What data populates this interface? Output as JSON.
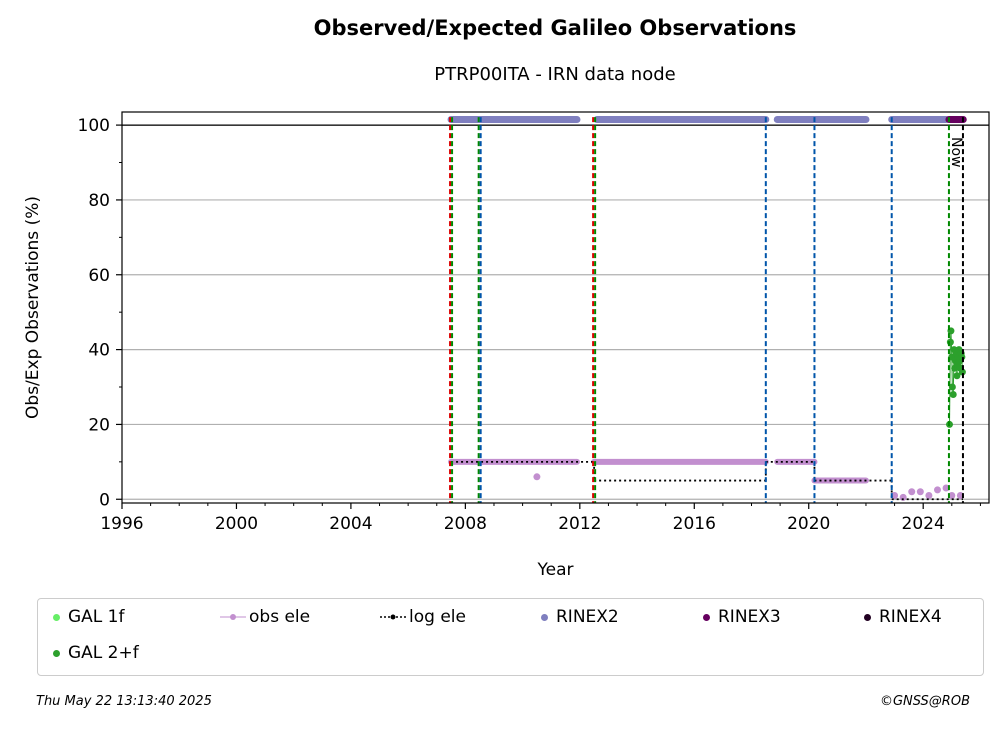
{
  "header": {
    "title": "Observed/Expected Galileo Observations",
    "subtitle": "PTRP00ITA - IRN data node"
  },
  "footer": {
    "timestamp": "Thu May 22 13:13:40 2025",
    "copyright": "©GNSS@ROB"
  },
  "now_label": "Now",
  "legend": {
    "gal1f": "GAL 1f",
    "gal2f": "GAL 2+f",
    "obs_ele": "obs ele",
    "log_ele": "log ele",
    "rinex2": "RINEX2",
    "rinex3": "RINEX3",
    "rinex4": "RINEX4"
  },
  "colors": {
    "gal1f": "#66ee66",
    "gal2f": "#2ca02c",
    "obs_ele": "#c28fcf",
    "log_ele": "#000000",
    "rinex2": "#7f7fbf",
    "rinex3": "#66005f",
    "rinex4": "#220022",
    "vline_red": "#dd0000",
    "vline_green": "#008800",
    "vline_blue": "#0055aa",
    "vline_now": "#000000"
  },
  "chart_data": {
    "type": "scatter",
    "title": "Observed/Expected Galileo Observations",
    "subtitle": "PTRP00ITA - IRN data node",
    "xlabel": "Year",
    "ylabel": "Obs/Exp Observations (%)",
    "xlim": [
      1996,
      2026.3
    ],
    "ylim": [
      -1,
      103.5
    ],
    "xticks": [
      1996,
      2000,
      2004,
      2008,
      2012,
      2016,
      2020,
      2024
    ],
    "yticks": [
      0,
      20,
      40,
      60,
      80,
      100
    ],
    "grid": "y",
    "reference_line": 100,
    "legend_position": "bottom",
    "vertical_lines": [
      {
        "x": 2007.5,
        "style": "red-green"
      },
      {
        "x": 2008.5,
        "style": "green-blue"
      },
      {
        "x": 2012.5,
        "style": "red-green"
      },
      {
        "x": 2018.5,
        "style": "blue"
      },
      {
        "x": 2020.2,
        "style": "blue"
      },
      {
        "x": 2022.9,
        "style": "blue"
      },
      {
        "x": 2024.9,
        "style": "green"
      },
      {
        "x": 2025.39,
        "style": "now"
      }
    ],
    "rinex2_periods": [
      [
        2007.5,
        2008.0
      ],
      [
        2008.0,
        2011.9
      ],
      [
        2012.6,
        2018.5
      ],
      [
        2018.9,
        2022.0
      ],
      [
        2022.9,
        2024.8
      ]
    ],
    "rinex3_periods": [
      [
        2024.9,
        2025.4
      ]
    ],
    "log_ele_steps": [
      [
        2007.5,
        2012.5,
        10
      ],
      [
        2012.5,
        2018.5,
        5
      ],
      [
        2018.5,
        2020.2,
        10
      ],
      [
        2020.2,
        2022.9,
        5
      ],
      [
        2022.9,
        2025.39,
        0
      ]
    ],
    "obs_ele_segments": [
      [
        2007.5,
        2011.9,
        10
      ],
      [
        2012.5,
        2018.5,
        10
      ],
      [
        2018.9,
        2020.2,
        10
      ],
      [
        2020.2,
        2022.0,
        5
      ]
    ],
    "obs_ele_points": [
      [
        2010.5,
        6
      ],
      [
        2023.0,
        1
      ],
      [
        2023.3,
        0.5
      ],
      [
        2023.6,
        2
      ],
      [
        2023.9,
        2
      ],
      [
        2024.2,
        1
      ],
      [
        2024.5,
        2.5
      ],
      [
        2024.8,
        3
      ],
      [
        2025.0,
        1
      ],
      [
        2025.3,
        1
      ]
    ],
    "gal2f_points": [
      [
        2024.92,
        20
      ],
      [
        2024.95,
        42
      ],
      [
        2024.97,
        45
      ],
      [
        2025.0,
        38
      ],
      [
        2025.02,
        30
      ],
      [
        2025.05,
        28
      ],
      [
        2025.08,
        40
      ],
      [
        2025.1,
        35
      ],
      [
        2025.13,
        37
      ],
      [
        2025.15,
        39
      ],
      [
        2025.18,
        33
      ],
      [
        2025.2,
        36
      ],
      [
        2025.23,
        38
      ],
      [
        2025.25,
        40
      ],
      [
        2025.28,
        37
      ],
      [
        2025.3,
        35
      ],
      [
        2025.33,
        39
      ],
      [
        2025.35,
        38
      ],
      [
        2025.37,
        34
      ]
    ]
  }
}
